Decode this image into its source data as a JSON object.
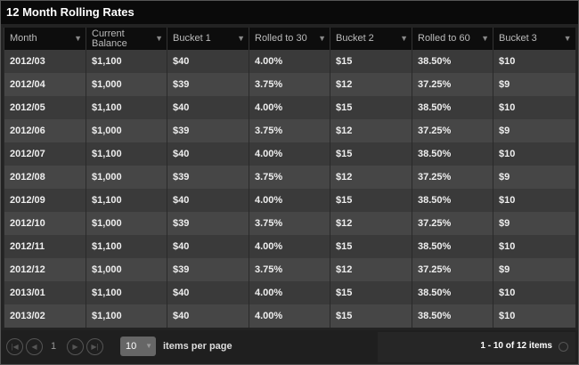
{
  "title": "12 Month Rolling Rates",
  "columns": [
    "Month",
    "Current Balance",
    "Bucket 1",
    "Rolled to 30",
    "Bucket 2",
    "Rolled to 60",
    "Bucket 3"
  ],
  "rows": [
    [
      "2012/03",
      "$1,100",
      "$40",
      "4.00%",
      "$15",
      "38.50%",
      "$10"
    ],
    [
      "2012/04",
      "$1,000",
      "$39",
      "3.75%",
      "$12",
      "37.25%",
      "$9"
    ],
    [
      "2012/05",
      "$1,100",
      "$40",
      "4.00%",
      "$15",
      "38.50%",
      "$10"
    ],
    [
      "2012/06",
      "$1,000",
      "$39",
      "3.75%",
      "$12",
      "37.25%",
      "$9"
    ],
    [
      "2012/07",
      "$1,100",
      "$40",
      "4.00%",
      "$15",
      "38.50%",
      "$10"
    ],
    [
      "2012/08",
      "$1,000",
      "$39",
      "3.75%",
      "$12",
      "37.25%",
      "$9"
    ],
    [
      "2012/09",
      "$1,100",
      "$40",
      "4.00%",
      "$15",
      "38.50%",
      "$10"
    ],
    [
      "2012/10",
      "$1,000",
      "$39",
      "3.75%",
      "$12",
      "37.25%",
      "$9"
    ],
    [
      "2012/11",
      "$1,100",
      "$40",
      "4.00%",
      "$15",
      "38.50%",
      "$10"
    ],
    [
      "2012/12",
      "$1,000",
      "$39",
      "3.75%",
      "$12",
      "37.25%",
      "$9"
    ],
    [
      "2013/01",
      "$1,100",
      "$40",
      "4.00%",
      "$15",
      "38.50%",
      "$10"
    ],
    [
      "2013/02",
      "$1,100",
      "$40",
      "4.00%",
      "$15",
      "38.50%",
      "$10"
    ]
  ],
  "pager": {
    "page": "1",
    "page_size": "10",
    "items_per_page_label": "items per page",
    "info": "1 - 10 of 12 items"
  }
}
